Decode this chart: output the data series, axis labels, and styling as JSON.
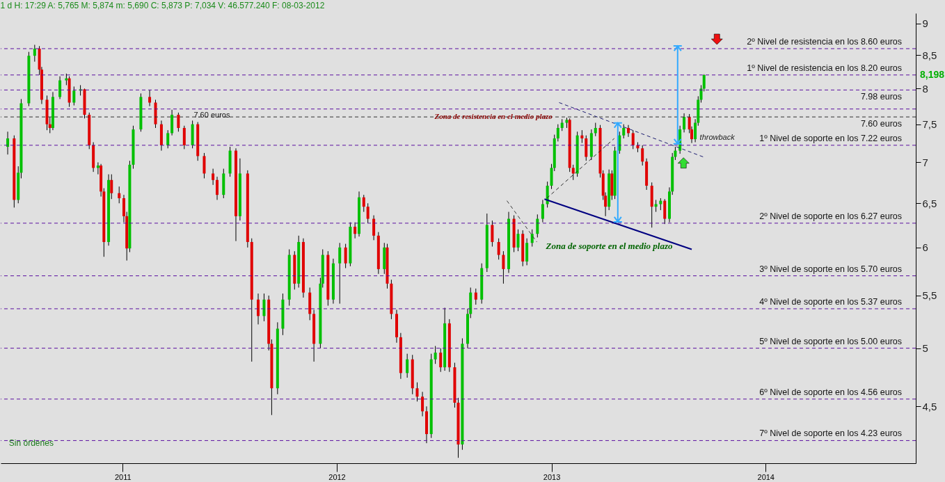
{
  "chart_data": {
    "type": "candlestick",
    "title": "1 d  H: 17:29  A: 5,765  M: 5,874  m: 5,690  C: 5,873  P: 7,034  V: 46.577.240  F: 08-03-2012",
    "x": [
      "2010-06-19",
      "2010-06-30",
      "2010-07-07",
      "2010-07-12",
      "2010-07-25",
      "2010-08-04",
      "2010-08-12",
      "2010-08-16",
      "2010-08-25",
      "2010-08-30",
      "2010-09-04",
      "2010-09-16",
      "2010-09-27",
      "2010-10-02",
      "2010-10-10",
      "2010-10-21",
      "2010-10-28",
      "2010-11-05",
      "2010-11-12",
      "2010-11-20",
      "2010-11-25",
      "2010-11-30",
      "2010-12-08",
      "2010-12-13",
      "2010-12-26",
      "2011-01-03",
      "2011-01-08",
      "2011-01-13",
      "2011-01-19",
      "2011-02-01",
      "2011-02-16",
      "2011-02-26",
      "2011-03-08",
      "2011-03-19",
      "2011-03-26",
      "2011-04-06",
      "2011-04-16",
      "2011-04-30",
      "2011-05-09",
      "2011-05-20",
      "2011-06-04",
      "2011-06-11",
      "2011-06-22",
      "2011-07-03",
      "2011-07-13",
      "2011-07-20",
      "2011-08-02",
      "2011-08-09",
      "2011-08-20",
      "2011-08-30",
      "2011-09-07",
      "2011-09-12",
      "2011-09-22",
      "2011-10-01",
      "2011-10-12",
      "2011-10-21",
      "2011-10-28",
      "2011-11-05",
      "2011-11-16",
      "2011-11-23",
      "2011-12-04",
      "2011-12-08",
      "2011-12-17",
      "2011-12-26",
      "2012-01-06",
      "2012-01-16",
      "2012-01-24",
      "2012-02-01",
      "2012-02-08",
      "2012-02-16",
      "2012-02-23",
      "2012-03-04",
      "2012-03-12",
      "2012-03-22",
      "2012-03-27",
      "2012-04-03",
      "2012-04-12",
      "2012-04-19",
      "2012-04-30",
      "2012-05-09",
      "2012-05-17",
      "2012-05-26",
      "2012-06-02",
      "2012-06-10",
      "2012-06-17",
      "2012-06-26",
      "2012-07-03",
      "2012-07-11",
      "2012-07-20",
      "2012-07-26",
      "2012-08-02",
      "2012-08-11",
      "2012-08-16",
      "2012-08-25",
      "2012-09-04",
      "2012-09-13",
      "2012-09-22",
      "2012-10-03",
      "2012-10-11",
      "2012-10-20",
      "2012-10-29",
      "2012-11-05",
      "2012-11-13",
      "2012-11-20",
      "2012-11-29",
      "2012-12-08",
      "2012-12-17",
      "2012-12-25",
      "2013-01-01",
      "2013-01-06",
      "2013-01-12",
      "2013-01-19",
      "2013-01-27",
      "2013-02-01",
      "2013-02-07",
      "2013-02-14",
      "2013-02-22",
      "2013-03-01",
      "2013-03-10",
      "2013-03-17",
      "2013-03-25",
      "2013-03-30",
      "2013-04-03",
      "2013-04-09",
      "2013-04-14",
      "2013-04-19",
      "2013-04-27",
      "2013-05-04",
      "2013-05-12",
      "2013-05-20",
      "2013-05-28",
      "2013-06-05",
      "2013-06-12",
      "2013-06-21",
      "2013-06-28",
      "2013-07-06",
      "2013-07-13",
      "2013-07-21",
      "2013-07-26",
      "2013-07-31",
      "2013-08-08",
      "2013-08-15",
      "2013-08-24",
      "2013-08-28",
      "2013-09-03",
      "2013-09-08",
      "2013-09-13",
      "2013-09-18"
    ],
    "ohlc": [
      [
        7.2,
        7.4,
        7.1,
        7.31
      ],
      [
        7.31,
        7.35,
        6.45,
        6.54
      ],
      [
        6.54,
        6.95,
        6.5,
        6.87
      ],
      [
        6.87,
        7.85,
        6.8,
        7.79
      ],
      [
        7.79,
        8.55,
        7.75,
        8.49
      ],
      [
        8.49,
        8.66,
        8.4,
        8.6
      ],
      [
        8.6,
        8.64,
        8.2,
        8.28
      ],
      [
        8.28,
        8.32,
        7.78,
        7.84
      ],
      [
        7.84,
        7.9,
        7.42,
        7.5
      ],
      [
        7.5,
        7.6,
        7.38,
        7.45
      ],
      [
        7.45,
        7.95,
        7.42,
        7.88
      ],
      [
        7.88,
        8.18,
        7.85,
        8.12
      ],
      [
        8.12,
        8.22,
        8.05,
        8.15
      ],
      [
        8.15,
        8.18,
        7.74,
        7.8
      ],
      [
        7.8,
        8.03,
        7.76,
        7.97
      ],
      [
        7.97,
        8.05,
        7.9,
        7.99
      ],
      [
        7.99,
        8.0,
        7.58,
        7.63
      ],
      [
        7.63,
        7.66,
        7.17,
        7.22
      ],
      [
        7.22,
        7.26,
        6.88,
        6.93
      ],
      [
        6.93,
        7.0,
        6.85,
        6.96
      ],
      [
        6.96,
        6.98,
        6.58,
        6.64
      ],
      [
        6.64,
        6.68,
        5.9,
        6.06
      ],
      [
        6.06,
        6.85,
        6.02,
        6.78
      ],
      [
        6.78,
        6.85,
        6.55,
        6.62
      ],
      [
        6.62,
        6.7,
        6.5,
        6.56
      ],
      [
        6.56,
        6.6,
        6.28,
        6.35
      ],
      [
        6.35,
        6.4,
        5.86,
        5.99
      ],
      [
        5.99,
        7.02,
        5.95,
        6.97
      ],
      [
        6.97,
        7.48,
        6.92,
        7.43
      ],
      [
        7.43,
        7.93,
        7.4,
        7.88
      ],
      [
        7.88,
        7.98,
        7.75,
        7.8
      ],
      [
        7.8,
        7.84,
        7.45,
        7.5
      ],
      [
        7.5,
        7.55,
        7.15,
        7.22
      ],
      [
        7.22,
        7.42,
        7.18,
        7.38
      ],
      [
        7.38,
        7.7,
        7.35,
        7.63
      ],
      [
        7.63,
        7.66,
        7.4,
        7.45
      ],
      [
        7.45,
        7.48,
        7.17,
        7.22
      ],
      [
        7.22,
        7.55,
        7.18,
        7.5
      ],
      [
        7.5,
        7.53,
        7.02,
        7.08
      ],
      [
        7.08,
        7.12,
        6.8,
        6.86
      ],
      [
        6.86,
        6.92,
        6.72,
        6.78
      ],
      [
        6.78,
        6.82,
        6.54,
        6.6
      ],
      [
        6.6,
        6.92,
        6.56,
        6.86
      ],
      [
        6.86,
        7.2,
        6.82,
        7.15
      ],
      [
        7.15,
        7.18,
        6.07,
        6.35
      ],
      [
        6.35,
        7.05,
        6.3,
        6.86
      ],
      [
        6.86,
        6.9,
        6.0,
        6.06
      ],
      [
        6.06,
        6.1,
        4.88,
        5.46
      ],
      [
        5.46,
        5.52,
        5.22,
        5.3
      ],
      [
        5.3,
        5.52,
        5.25,
        5.46
      ],
      [
        5.46,
        5.5,
        4.98,
        5.04
      ],
      [
        5.04,
        5.08,
        4.43,
        4.65
      ],
      [
        4.65,
        5.24,
        4.6,
        5.18
      ],
      [
        5.18,
        5.52,
        5.12,
        5.46
      ],
      [
        5.46,
        5.98,
        5.4,
        5.92
      ],
      [
        5.92,
        5.96,
        5.56,
        5.62
      ],
      [
        5.62,
        6.13,
        5.58,
        6.06
      ],
      [
        6.06,
        6.1,
        5.48,
        5.53
      ],
      [
        5.53,
        5.58,
        5.26,
        5.32
      ],
      [
        5.32,
        5.36,
        4.88,
        5.04
      ],
      [
        5.04,
        5.68,
        5.0,
        5.62
      ],
      [
        5.62,
        5.98,
        5.58,
        5.92
      ],
      [
        5.92,
        5.96,
        5.4,
        5.46
      ],
      [
        5.46,
        5.88,
        5.42,
        5.83
      ],
      [
        5.83,
        6.05,
        5.42,
        6.0
      ],
      [
        6.0,
        6.04,
        5.78,
        5.83
      ],
      [
        5.83,
        6.28,
        5.8,
        6.23
      ],
      [
        6.23,
        6.28,
        6.1,
        6.15
      ],
      [
        6.15,
        6.64,
        6.12,
        6.57
      ],
      [
        6.57,
        6.6,
        6.4,
        6.46
      ],
      [
        6.46,
        6.5,
        6.27,
        6.32
      ],
      [
        6.32,
        6.36,
        6.08,
        6.13
      ],
      [
        6.13,
        6.17,
        5.72,
        5.77
      ],
      [
        5.77,
        6.05,
        5.72,
        6.0
      ],
      [
        6.0,
        6.04,
        5.57,
        5.62
      ],
      [
        5.62,
        5.66,
        5.27,
        5.32
      ],
      [
        5.32,
        5.36,
        5.05,
        5.1
      ],
      [
        5.1,
        5.14,
        4.73,
        4.78
      ],
      [
        4.78,
        4.95,
        4.74,
        4.9
      ],
      [
        4.9,
        4.94,
        4.6,
        4.65
      ],
      [
        4.65,
        4.7,
        4.54,
        4.58
      ],
      [
        4.58,
        4.62,
        4.42,
        4.46
      ],
      [
        4.46,
        4.5,
        4.21,
        4.28
      ],
      [
        4.28,
        4.95,
        4.25,
        4.9
      ],
      [
        4.9,
        5.02,
        4.86,
        4.96
      ],
      [
        4.96,
        5.0,
        4.79,
        4.83
      ],
      [
        4.83,
        5.38,
        4.8,
        5.23
      ],
      [
        5.23,
        5.27,
        4.79,
        4.83
      ],
      [
        4.83,
        4.87,
        4.49,
        4.53
      ],
      [
        4.53,
        4.57,
        4.1,
        4.2
      ],
      [
        4.2,
        5.09,
        4.16,
        5.04
      ],
      [
        5.04,
        5.37,
        5.0,
        5.32
      ],
      [
        5.32,
        5.58,
        5.28,
        5.53
      ],
      [
        5.53,
        5.57,
        5.41,
        5.46
      ],
      [
        5.46,
        5.83,
        5.42,
        5.78
      ],
      [
        5.78,
        6.38,
        5.74,
        6.25
      ],
      [
        6.25,
        6.3,
        6.01,
        6.06
      ],
      [
        6.06,
        6.1,
        5.87,
        5.92
      ],
      [
        5.92,
        5.96,
        5.62,
        5.77
      ],
      [
        5.77,
        6.4,
        5.73,
        6.32
      ],
      [
        6.32,
        6.36,
        5.95,
        6.0
      ],
      [
        6.0,
        6.2,
        5.96,
        6.15
      ],
      [
        6.15,
        6.19,
        5.8,
        5.85
      ],
      [
        5.85,
        6.1,
        5.81,
        6.05
      ],
      [
        6.05,
        6.2,
        6.01,
        6.15
      ],
      [
        6.15,
        6.37,
        6.11,
        6.32
      ],
      [
        6.32,
        6.54,
        6.28,
        6.49
      ],
      [
        6.49,
        6.76,
        6.45,
        6.71
      ],
      [
        6.71,
        6.98,
        6.67,
        6.93
      ],
      [
        6.93,
        7.36,
        6.89,
        7.31
      ],
      [
        7.31,
        7.5,
        7.27,
        7.45
      ],
      [
        7.45,
        7.57,
        7.41,
        7.52
      ],
      [
        7.52,
        7.59,
        7.45,
        7.56
      ],
      [
        7.56,
        7.58,
        6.88,
        6.93
      ],
      [
        6.93,
        6.97,
        6.78,
        6.86
      ],
      [
        6.86,
        7.4,
        6.82,
        7.35
      ],
      [
        7.35,
        7.42,
        7.25,
        7.31
      ],
      [
        7.31,
        7.35,
        7.02,
        7.07
      ],
      [
        7.07,
        7.43,
        7.03,
        7.38
      ],
      [
        7.38,
        7.52,
        7.34,
        7.45
      ],
      [
        7.45,
        7.49,
        6.81,
        6.86
      ],
      [
        6.86,
        6.9,
        6.54,
        6.59
      ],
      [
        6.59,
        6.63,
        6.35,
        6.46
      ],
      [
        6.46,
        6.91,
        6.42,
        6.86
      ],
      [
        6.86,
        6.9,
        6.54,
        6.59
      ],
      [
        6.59,
        7.2,
        6.55,
        7.15
      ],
      [
        7.15,
        7.4,
        7.11,
        7.35
      ],
      [
        7.35,
        7.5,
        7.31,
        7.45
      ],
      [
        7.45,
        7.49,
        7.33,
        7.38
      ],
      [
        7.38,
        7.42,
        7.17,
        7.22
      ],
      [
        7.22,
        7.26,
        7.13,
        7.18
      ],
      [
        7.18,
        7.22,
        6.96,
        7.01
      ],
      [
        7.01,
        7.05,
        6.66,
        6.71
      ],
      [
        6.71,
        6.75,
        6.22,
        6.46
      ],
      [
        6.46,
        6.54,
        6.4,
        6.49
      ],
      [
        6.49,
        6.56,
        6.42,
        6.53
      ],
      [
        6.53,
        6.55,
        6.26,
        6.32
      ],
      [
        6.32,
        6.69,
        6.28,
        6.64
      ],
      [
        6.64,
        7.12,
        6.6,
        7.07
      ],
      [
        7.07,
        7.2,
        7.03,
        7.15
      ],
      [
        7.15,
        7.48,
        7.11,
        7.43
      ],
      [
        7.43,
        7.65,
        7.39,
        7.6
      ],
      [
        7.6,
        7.64,
        7.38,
        7.43
      ],
      [
        7.43,
        7.47,
        7.25,
        7.3
      ],
      [
        7.3,
        7.57,
        7.26,
        7.52
      ],
      [
        7.52,
        7.89,
        7.48,
        7.84
      ],
      [
        7.84,
        8.05,
        7.8,
        8.0
      ],
      [
        8.0,
        8.21,
        7.96,
        8.198
      ]
    ],
    "colors": [
      "#00c000",
      "#e00000",
      "#00c000",
      "#00c000",
      "#00c000",
      "#00c000",
      "#e00000",
      "#e00000",
      "#e00000",
      "#e00000",
      "#00c000",
      "#00c000",
      "#00c000",
      "#e00000",
      "#00c000",
      "#00c000",
      "#e00000",
      "#e00000",
      "#e00000",
      "#00c000",
      "#e00000",
      "#e00000",
      "#00c000",
      "#e00000",
      "#e00000",
      "#e00000",
      "#e00000",
      "#00c000",
      "#00c000",
      "#00c000",
      "#e00000",
      "#e00000",
      "#e00000",
      "#00c000",
      "#00c000",
      "#e00000",
      "#e00000",
      "#00c000",
      "#e00000",
      "#e00000",
      "#e00000",
      "#e00000",
      "#00c000",
      "#00c000",
      "#e00000",
      "#00c000",
      "#e00000",
      "#e00000",
      "#e00000",
      "#00c000",
      "#e00000",
      "#e00000",
      "#00c000",
      "#00c000",
      "#00c000",
      "#e00000",
      "#00c000",
      "#e00000",
      "#e00000",
      "#e00000",
      "#00c000",
      "#00c000",
      "#e00000",
      "#00c000",
      "#00c000",
      "#e00000",
      "#00c000",
      "#e00000",
      "#00c000",
      "#e00000",
      "#e00000",
      "#e00000",
      "#e00000",
      "#00c000",
      "#e00000",
      "#e00000",
      "#e00000",
      "#e00000",
      "#00c000",
      "#e00000",
      "#e00000",
      "#e00000",
      "#e00000",
      "#00c000",
      "#00c000",
      "#e00000",
      "#00c000",
      "#e00000",
      "#e00000",
      "#e00000",
      "#00c000",
      "#00c000",
      "#00c000",
      "#e00000",
      "#00c000",
      "#00c000",
      "#e00000",
      "#e00000",
      "#e00000",
      "#00c000",
      "#e00000",
      "#00c000",
      "#e00000",
      "#00c000",
      "#00c000",
      "#00c000",
      "#00c000",
      "#00c000",
      "#00c000",
      "#00c000",
      "#00c000",
      "#00c000",
      "#00c000",
      "#e00000",
      "#e00000",
      "#00c000",
      "#e00000",
      "#e00000",
      "#00c000",
      "#00c000",
      "#e00000",
      "#e00000",
      "#e00000",
      "#00c000",
      "#e00000",
      "#00c000",
      "#00c000",
      "#00c000",
      "#e00000",
      "#e00000",
      "#e00000",
      "#e00000",
      "#e00000",
      "#e00000",
      "#00c000",
      "#00c000",
      "#e00000",
      "#00c000",
      "#00c000",
      "#00c000",
      "#00c000",
      "#00c000",
      "#e00000",
      "#e00000",
      "#00c000",
      "#00c000",
      "#00c000",
      "#00c000"
    ],
    "series": [
      {
        "type": "line",
        "x": [
          "2012-12-20",
          "2013-08-28"
        ],
        "values": [
          6.55,
          5.98
        ],
        "color": "#000080",
        "line_style": "solid"
      },
      {
        "type": "line",
        "x": [
          "2013-01-14",
          "2013-09-20"
        ],
        "values": [
          7.8,
          7.06
        ],
        "color": "#1c1c70",
        "line_style": "dashed"
      },
      {
        "type": "line",
        "x": [
          "2012-12-24",
          "2013-04-18"
        ],
        "values": [
          6.56,
          7.31
        ],
        "color": "#2a2a2a",
        "line_style": "dashed"
      },
      {
        "type": "line",
        "x": [
          "2012-10-17",
          "2012-12-07"
        ],
        "values": [
          6.53,
          6.06
        ],
        "color": "#3a3a3a",
        "line_style": "dashed"
      }
    ],
    "xlim": [
      "2010-06-13",
      "2014-09-08"
    ],
    "xticks": [
      "2011",
      "2012",
      "2013",
      "2014"
    ],
    "ylim": [
      4.06,
      9.17
    ],
    "yticks": [
      {
        "value": 4.5,
        "label": "4,5"
      },
      5,
      {
        "value": 5.5,
        "label": "5,5"
      },
      6,
      {
        "value": 6.5,
        "label": "6,5"
      },
      7,
      {
        "value": 7.5,
        "label": "7,5"
      },
      8,
      {
        "value": 8.5,
        "label": "8,5"
      },
      9
    ],
    "log": "y",
    "ref_lines": [
      {
        "axis": "y",
        "value": 8.6,
        "label": "2º Nivel de resistencia en los 8.60 euros",
        "color": "#5b0fa0",
        "line_style": "dashed"
      },
      {
        "axis": "y",
        "value": 8.2,
        "label": "1º Nivel de resistencia en los 8.20 euros",
        "color": "#5b0fa0",
        "line_style": "dashed"
      },
      {
        "axis": "y",
        "value": 7.98,
        "label": "7.98 euros",
        "color": "#5b0fa0",
        "line_style": "dashed"
      },
      {
        "axis": "y",
        "value": 7.71,
        "label": null,
        "color": "#5b0fa0",
        "line_style": "dashed"
      },
      {
        "axis": "y",
        "value": 7.6,
        "label": "7.60 euros",
        "color": "#303030",
        "line_style": "dashed"
      },
      {
        "axis": "y",
        "value": 7.22,
        "label": "1º Nivel de soporte en los 7.22 euros",
        "color": "#5b0fa0",
        "line_style": "dashed"
      },
      {
        "axis": "y",
        "value": 6.27,
        "label": "2º Nivel de soporte en los 6.27 euros",
        "color": "#5b0fa0",
        "line_style": "dashed"
      },
      {
        "axis": "y",
        "value": 5.7,
        "label": "3º Nivel de soporte en los 5.70 euros",
        "color": "#5b0fa0",
        "line_style": "dashed"
      },
      {
        "axis": "y",
        "value": 5.37,
        "label": "4º Nivel de soporte en los 5.37 euros",
        "color": "#5b0fa0",
        "line_style": "dashed"
      },
      {
        "axis": "y",
        "value": 5.0,
        "label": "5º Nivel de soporte en los 5.00 euros",
        "color": "#5b0fa0",
        "line_style": "dashed"
      },
      {
        "axis": "y",
        "value": 4.56,
        "label": "6º Nivel de soporte en los 4.56 euros",
        "color": "#5b0fa0",
        "line_style": "dashed"
      },
      {
        "axis": "y",
        "value": 4.23,
        "label": "7º Nivel de soporte en los 4.23 euros",
        "color": "#5b0fa0",
        "line_style": "dashed"
      }
    ],
    "annotations": [
      {
        "text": "Zona de resistencia en el medio plazo",
        "x": "2012-09-24",
        "y": 7.6
      },
      {
        "text": "7.60 euros",
        "x": "2011-06-02",
        "y": 7.62
      },
      "Zona de soporte en el medio plazo",
      "throwback",
      "8,198",
      "Sin órdenes"
    ]
  }
}
